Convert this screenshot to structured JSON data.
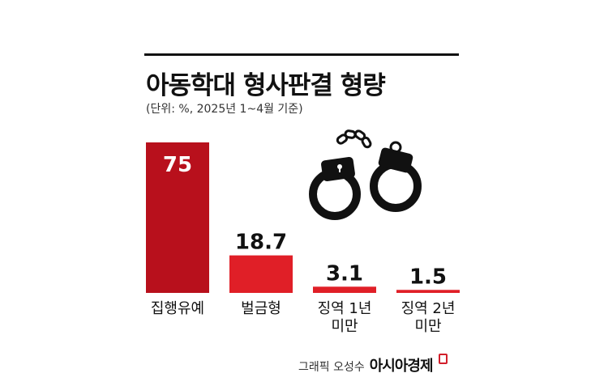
{
  "header": {
    "title": "아동학대 형사판결 형량",
    "subtitle": "(단위: %, 2025년 1~4월 기준)"
  },
  "footer": {
    "author": "그래픽 오성수",
    "brand": "아시아경제"
  },
  "decoration": {
    "icon": "handcuffs-icon"
  },
  "colors": {
    "bar_dark": "#b8101c",
    "bar_bright": "#e01f27",
    "text": "#111111"
  },
  "chart_data": {
    "type": "bar",
    "title": "아동학대 형사판결 형량",
    "subtitle": "(단위: %, 2025년 1~4월 기준)",
    "categories": [
      "집행유예",
      "벌금형",
      "징역 1년 미만",
      "징역 2년 미만"
    ],
    "category_lines": [
      [
        "집행유예"
      ],
      [
        "벌금형"
      ],
      [
        "징역 1년",
        "미만"
      ],
      [
        "징역 2년",
        "미만"
      ]
    ],
    "values": [
      75,
      18.7,
      3.1,
      1.5
    ],
    "value_labels": [
      "75",
      "18.7",
      "3.1",
      "1.5"
    ],
    "unit": "%",
    "ylim": [
      0,
      75
    ],
    "grid": false,
    "legend": "none"
  }
}
